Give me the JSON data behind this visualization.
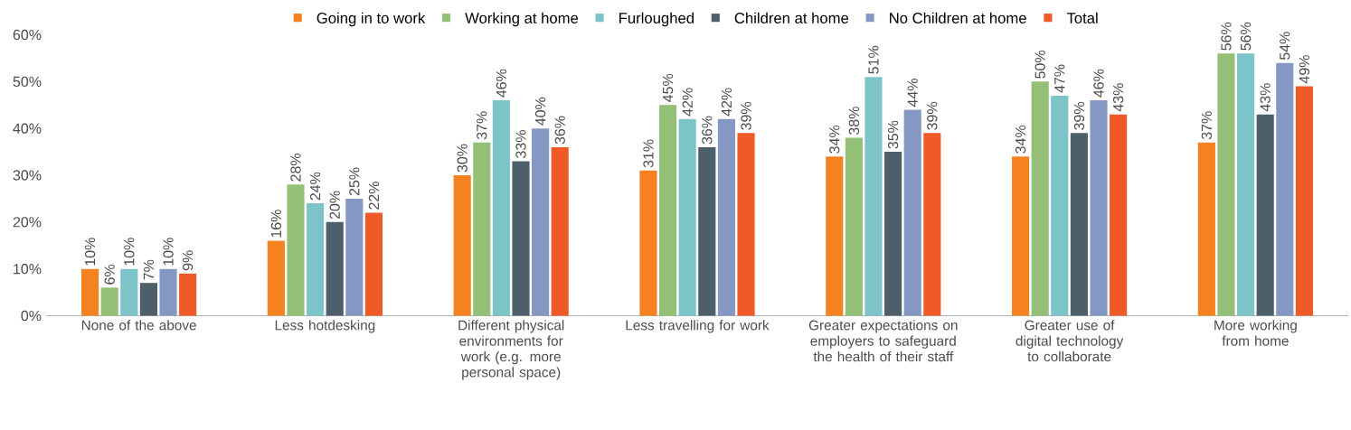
{
  "chart_data": {
    "type": "bar",
    "categories": [
      "None of the above",
      "Less hotdesking",
      "Different physical environments for work (e.g. more personal space)",
      "Less travelling for work",
      "Greater expectations on employers to safeguard the health of their staff",
      "Greater use of digital technology to collaborate",
      "More working from home"
    ],
    "series": [
      {
        "name": "Going in to work",
        "color": "#f58220",
        "values": [
          10,
          16,
          30,
          31,
          34,
          34,
          37
        ],
        "value_labels": [
          "10%",
          "16%",
          "30%",
          "31%",
          "34%",
          "34%",
          "37%"
        ]
      },
      {
        "name": "Working at home",
        "color": "#93bf76",
        "values": [
          6,
          28,
          37,
          45,
          38,
          50,
          56
        ],
        "value_labels": [
          "6%",
          "28%",
          "37%",
          "45%",
          "38%",
          "50%",
          "56%"
        ]
      },
      {
        "name": "Furloughed",
        "color": "#7cc4c8",
        "values": [
          10,
          24,
          46,
          42,
          51,
          47,
          56
        ],
        "value_labels": [
          "10%",
          "24%",
          "46%",
          "42%",
          "51%",
          "47%",
          "56%"
        ]
      },
      {
        "name": "Children at home",
        "color": "#4d5f6b",
        "values": [
          7,
          20,
          33,
          36,
          35,
          39,
          43
        ],
        "value_labels": [
          "7%",
          "20%",
          "33%",
          "36%",
          "35%",
          "39%",
          "43%"
        ]
      },
      {
        "name": "No Children at home",
        "color": "#8597c3",
        "values": [
          10,
          25,
          40,
          42,
          44,
          46,
          54
        ],
        "value_labels": [
          "10%",
          "25%",
          "40%",
          "42%",
          "44%",
          "46%",
          "54%"
        ]
      },
      {
        "name": "Total",
        "color": "#ef5a28",
        "values": [
          9,
          22,
          36,
          39,
          39,
          43,
          49
        ],
        "value_labels": [
          "9%",
          "22%",
          "36%",
          "39%",
          "39%",
          "43%",
          "49%"
        ]
      }
    ],
    "ylim": [
      0,
      60
    ],
    "yticks": [
      {
        "value": 0,
        "label": "0%"
      },
      {
        "value": 10,
        "label": "10%"
      },
      {
        "value": 20,
        "label": "20%"
      },
      {
        "value": 30,
        "label": "30%"
      },
      {
        "value": 40,
        "label": "40%"
      },
      {
        "value": 50,
        "label": "50%"
      },
      {
        "value": 60,
        "label": "60%"
      }
    ],
    "grid": false,
    "legend": "top"
  }
}
